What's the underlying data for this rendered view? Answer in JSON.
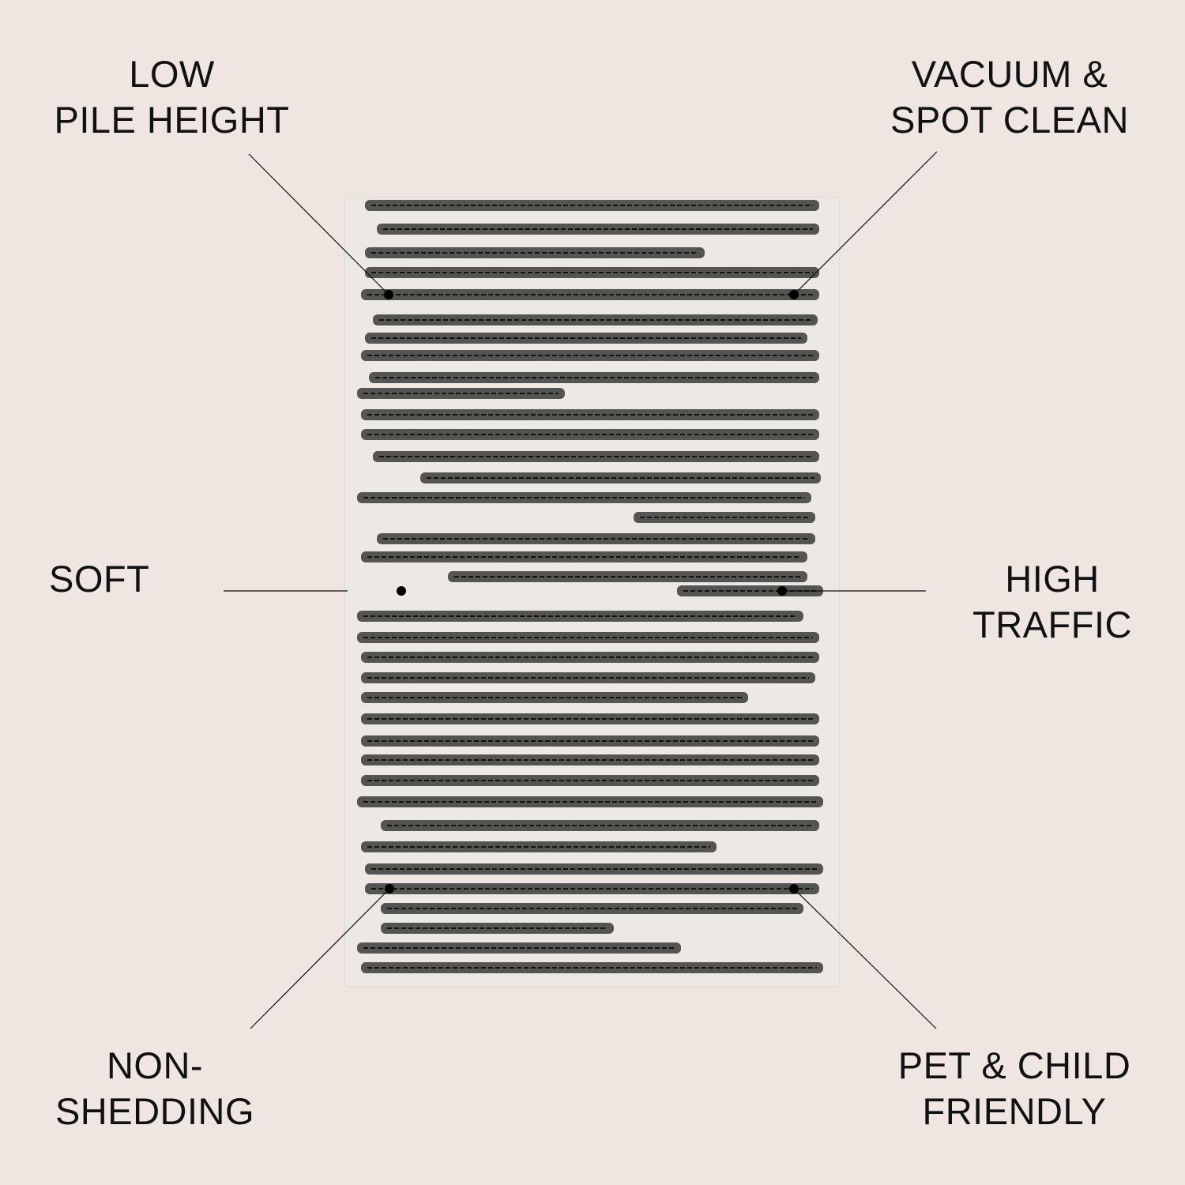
{
  "features": [
    {
      "id": "low-pile-height",
      "text": "LOW\nPILE HEIGHT"
    },
    {
      "id": "vacuum-spot-clean",
      "text": "VACUUM &\nSPOT CLEAN"
    },
    {
      "id": "soft",
      "text": "SOFT"
    },
    {
      "id": "high-traffic",
      "text": "HIGH\nTRAFFIC"
    },
    {
      "id": "non-shedding",
      "text": "NON-\nSHEDDING"
    },
    {
      "id": "pet-child-friendly",
      "text": "PET & CHILD\nFRIENDLY"
    }
  ],
  "colors": {
    "background": "#efe6e1",
    "rug_base": "#ece9e4",
    "stripe": "#3a3a3a",
    "callout": "#111111"
  }
}
